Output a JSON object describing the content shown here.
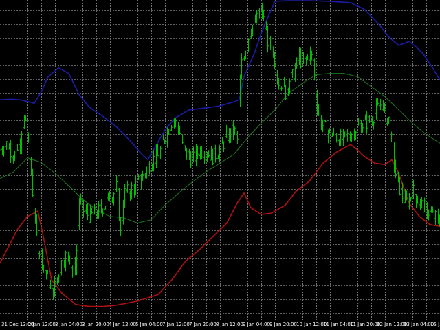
{
  "chart_data": {
    "type": "line",
    "x_tick_labels": [
      "31 Dec 13:00",
      "2 Jan 12:00",
      "3 Jan 04:00",
      "3 Jan 20:00",
      "4 Jan 12:00",
      "5 Jan 04:00",
      "7 Jan 12:00",
      "7 Jan 20:00",
      "8 Jan 12:00",
      "9 Jan 04:00",
      "9 Jan 20:00",
      "10 Jan 12:00",
      "11 Jan 04:00",
      "11 Jan 20:00",
      "12 Jan 12:00",
      "13 Jan 04:00",
      "15 Jan 12:00",
      "15 Jan 20:00",
      "16"
    ],
    "ylim": [
      0,
      480
    ],
    "grid": true,
    "colors": {
      "background": "#000000",
      "grid": "#c0c0c0",
      "price": "#00c000",
      "upper_band": "#1c1ca8",
      "middle_band": "#1f7a1f",
      "lower_band": "#b01010",
      "text": "#ffffff"
    },
    "series": [
      {
        "key": "upper_band",
        "x": [
          0,
          15,
          30,
          50,
          60,
          70,
          85,
          100,
          115,
          130,
          150,
          170,
          190,
          205,
          215,
          225,
          240,
          255,
          275,
          300,
          320,
          340,
          348,
          355,
          370,
          380,
          390,
          400,
          420,
          450,
          480,
          510,
          530,
          550,
          565,
          580,
          595,
          605,
          615,
          625,
          640
        ],
        "y": [
          330,
          331,
          330,
          325,
          342,
          365,
          378,
          370,
          338,
          319,
          305,
          289,
          268,
          250,
          240,
          258,
          285,
          303,
          315,
          318,
          321,
          327,
          330,
          365,
          400,
          430,
          455,
          478,
          479,
          479,
          478,
          476,
          466,
          445,
          425,
          412,
          418,
          410,
          400,
          385,
          360
        ]
      },
      {
        "key": "middle_band",
        "x": [
          0,
          20,
          40,
          60,
          80,
          100,
          120,
          140,
          160,
          180,
          200,
          220,
          240,
          260,
          280,
          300,
          320,
          340,
          360,
          380,
          400,
          420,
          440,
          460,
          480,
          500,
          520,
          540,
          560,
          580,
          600,
          620,
          640
        ],
        "y": [
          212,
          222,
          243,
          236,
          220,
          201,
          181,
          165,
          155,
          153,
          145,
          150,
          172,
          190,
          207,
          222,
          235,
          248,
          273,
          295,
          315,
          340,
          355,
          368,
          370,
          370,
          365,
          350,
          335,
          315,
          295,
          278,
          265
        ]
      },
      {
        "key": "lower_band",
        "x": [
          0,
          10,
          25,
          40,
          55,
          65,
          75,
          90,
          110,
          130,
          150,
          170,
          200,
          230,
          250,
          270,
          290,
          310,
          330,
          345,
          355,
          365,
          380,
          395,
          415,
          430,
          450,
          470,
          490,
          510,
          520,
          530,
          545,
          560,
          570,
          580,
          595,
          610,
          625,
          640
        ],
        "y": [
          85,
          105,
          135,
          155,
          163,
          115,
          60,
          40,
          23,
          20,
          20,
          22,
          28,
          38,
          60,
          88,
          105,
          125,
          145,
          175,
          190,
          168,
          158,
          160,
          172,
          192,
          208,
          235,
          252,
          263,
          255,
          245,
          235,
          233,
          240,
          220,
          175,
          155,
          143,
          140
        ]
      }
    ]
  }
}
